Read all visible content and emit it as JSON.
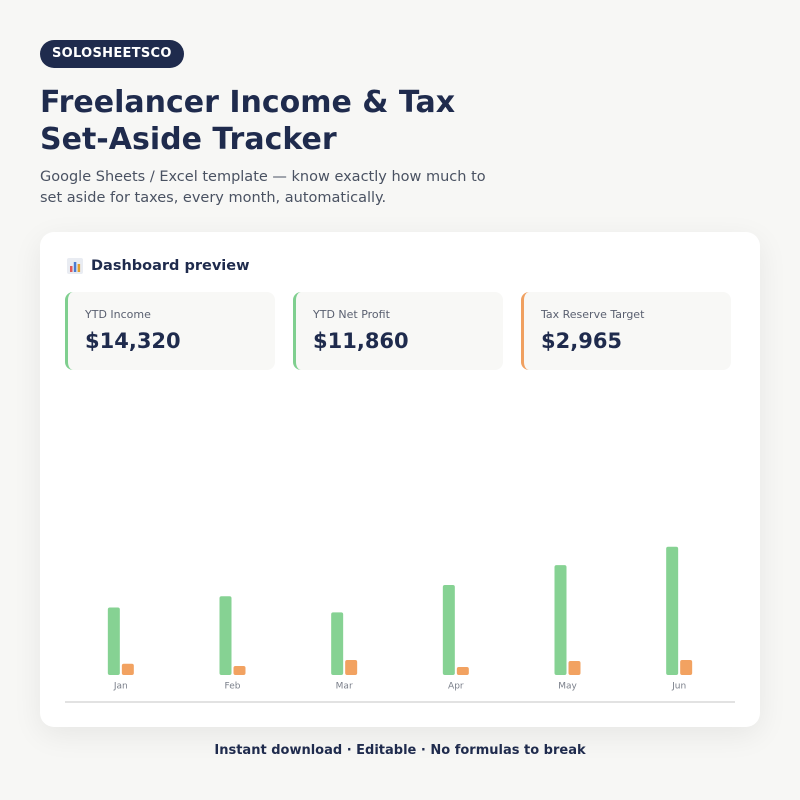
{
  "badge": "SOLOSHEETSCO",
  "header": {
    "title": "Freelancer Income & Tax Set-Aside Tracker",
    "subtitle": "Google Sheets / Excel template — know exactly how much to set aside for taxes, every month, automatically."
  },
  "dashboard": {
    "title": "Dashboard preview",
    "stats": [
      {
        "label": "YTD Income",
        "value": "$14,320"
      },
      {
        "label": "YTD Net Profit",
        "value": "$11,860"
      },
      {
        "label": "Tax Reserve Target",
        "value": "$2,965"
      }
    ]
  },
  "chart_data": {
    "type": "bar",
    "categories": [
      "Jan",
      "Feb",
      "Mar",
      "Apr",
      "May",
      "Jun"
    ],
    "series": [
      {
        "color": "#86d293",
        "values": [
          1800,
          2100,
          1670,
          2400,
          2930,
          3420
        ]
      },
      {
        "color": "#f2a261",
        "values": [
          300,
          240,
          400,
          215,
          375,
          400
        ]
      }
    ],
    "ylim": [
      0,
      7600
    ]
  },
  "footer": "Instant download · Editable · No formulas to break"
}
